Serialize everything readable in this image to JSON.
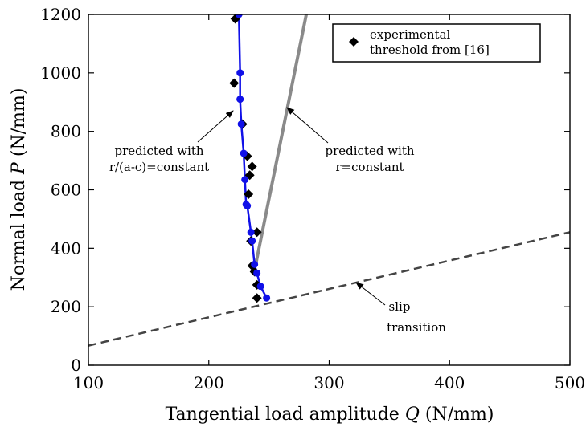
{
  "chart_data": {
    "type": "line",
    "title": "",
    "xlabel": "Tangential load amplitude Q (N/mm)",
    "xlabel_parts": [
      "Tangential load amplitude ",
      "Q",
      " (N/mm)"
    ],
    "ylabel": "Normal load P (N/mm)",
    "ylabel_parts": [
      "Normal load ",
      "P",
      " (N/mm)"
    ],
    "xlim": [
      100,
      500
    ],
    "ylim": [
      0,
      1200
    ],
    "xticks": [
      100,
      200,
      300,
      400,
      500
    ],
    "yticks": [
      0,
      200,
      400,
      600,
      800,
      1000,
      1200
    ],
    "grid": false,
    "legend_position": "top-right",
    "series": [
      {
        "name": "experimental threshold from [16]",
        "legend_lines": [
          "experimental",
          "threshold from [16]"
        ],
        "style": "markers",
        "marker": "diamond",
        "color": "#000000",
        "x": [
          222,
          221,
          228,
          232,
          236,
          234,
          233,
          240,
          235,
          236,
          238,
          240,
          240
        ],
        "y": [
          1185,
          965,
          825,
          715,
          680,
          650,
          585,
          455,
          425,
          340,
          320,
          275,
          230
        ]
      },
      {
        "name": "predicted with r/(a-c)=constant",
        "style": "line-with-points",
        "color": "#1010e8",
        "x": [
          225,
          226,
          226,
          227,
          229,
          230,
          231,
          232,
          235,
          236,
          238,
          240,
          243,
          248
        ],
        "y": [
          1200,
          1000,
          910,
          825,
          725,
          635,
          550,
          545,
          455,
          425,
          345,
          315,
          270,
          230
        ]
      },
      {
        "name": "predicted with r=constant",
        "style": "line",
        "color": "#8a8a8a",
        "x": [
          239,
          281
        ],
        "y": [
          345,
          1200
        ]
      },
      {
        "name": "slip transition",
        "style": "dashed",
        "color": "#444444",
        "x": [
          100,
          500
        ],
        "y": [
          67,
          455
        ]
      }
    ],
    "annotations": [
      {
        "lines": [
          "predicted with",
          "r/(a-c)=constant"
        ]
      },
      {
        "lines": [
          "predicted with",
          "r=constant"
        ]
      },
      {
        "lines": [
          "slip",
          "transition"
        ]
      }
    ]
  }
}
